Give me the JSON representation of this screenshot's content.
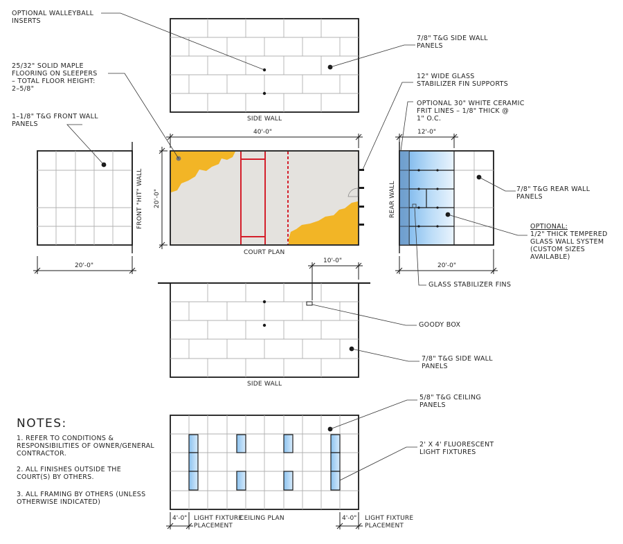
{
  "labels": {
    "volleyball": [
      "OPTIONAL WALLEYBALL",
      "INSERTS"
    ],
    "side_wall_panels_top": [
      "7/8\" T&G SIDE WALL",
      "PANELS"
    ],
    "maple": [
      "25/32\" SOLID MAPLE",
      "FLOORING ON SLEEPERS",
      "– TOTAL FLOOR HEIGHT:",
      "2–5/8\""
    ],
    "glass_fin_supports": [
      "12\" WIDE GLASS",
      "STABILIZER FIN SUPPORTS"
    ],
    "frit_lines": [
      "OPTIONAL 30\" WHITE CERAMIC",
      "FRIT LINES – 1/8\" THICK @",
      "1\" O.C."
    ],
    "front_wall_panels": [
      "1–1/8\" T&G FRONT WALL",
      "PANELS"
    ],
    "rear_wall_panels": [
      "7/8\" T&G REAR WALL",
      "PANELS"
    ],
    "optional_head": "OPTIONAL:",
    "glass_wall": [
      "1/2\" THICK TEMPERED",
      "GLASS WALL SYSTEM",
      "(CUSTOM SIZES",
      "AVAILABLE)"
    ],
    "glass_fins": "GLASS STABILIZER FINS",
    "goody_box": "GOODY BOX",
    "side_wall_panels_bottom": [
      "7/8\" T&G SIDE WALL",
      "PANELS"
    ],
    "ceiling_panels": [
      "5/8\" T&G CEILING",
      "PANELS"
    ],
    "light_fixtures": [
      "2' x 4' FLUORESCENT",
      "LIGHT FIXTURES"
    ]
  },
  "titles": {
    "side_wall_top": "SIDE WALL",
    "court_plan": "COURT PLAN",
    "side_wall_bottom": "SIDE WALL",
    "ceiling_plan": "CEILING PLAN",
    "front_hit_wall": "FRONT \"HIT\" WALL",
    "rear_wall": "REAR WALL",
    "light_left": [
      "LIGHT FIXTURE",
      "PLACEMENT"
    ],
    "light_right": [
      "LIGHT FIXTURE",
      "PLACEMENT"
    ]
  },
  "dimensions": {
    "court_length": "40'-0\"",
    "court_width": "20'-0\"",
    "front_wall_width": "20'-0\"",
    "rear_glass": "12'-0\"",
    "rear_wall_width": "20'-0\"",
    "goody_box_offset": "10'-0\"",
    "light_left": "4'-0\"",
    "light_right": "4'-0\""
  },
  "notes": {
    "heading": "NOTES:",
    "items": [
      [
        "1. REFER TO CONDITIONS &",
        "RESPONSIBILITIES OF OWNER/GENERAL",
        "CONTRACTOR."
      ],
      [
        "2. ALL FINISHES OUTSIDE THE",
        "COURT(S) BY OTHERS."
      ],
      [
        "3. ALL FRAMING BY OTHERS (UNLESS",
        "OTHERWISE INDICATED)"
      ]
    ]
  },
  "colors": {
    "line": "#1a1a1a",
    "panel_line": "#a8a8a8",
    "floor": "#e4e2de",
    "maple": "#f2b526",
    "court_lines": "#d41e2a",
    "glass": "#8ec5f0",
    "fixture": "#a9d2f4"
  }
}
